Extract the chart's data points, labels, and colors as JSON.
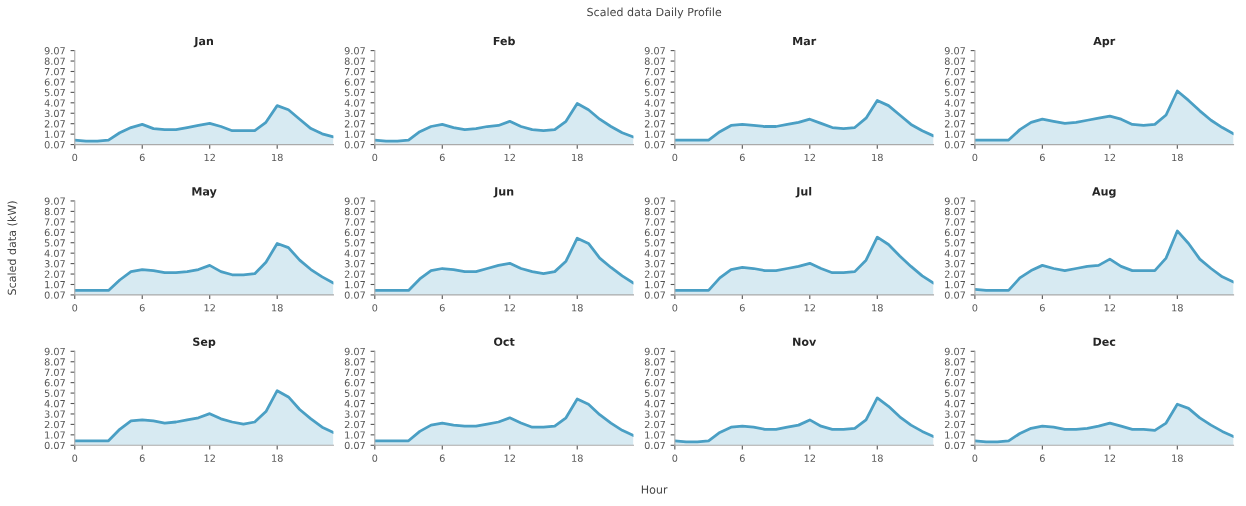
{
  "chart_data": [
    {
      "type": "other",
      "title": "Scaled data Daily Profile",
      "xlabel": "Hour",
      "ylabel": "Scaled data (kW)"
    },
    {
      "type": "area",
      "title": "Jan",
      "x": [
        0,
        1,
        2,
        3,
        4,
        5,
        6,
        7,
        8,
        9,
        10,
        11,
        12,
        13,
        14,
        15,
        16,
        17,
        18,
        19,
        20,
        21,
        22,
        23
      ],
      "xlim": [
        0,
        23
      ],
      "xticks": [
        0,
        6,
        12,
        18
      ],
      "ylim": [
        0.07,
        9.07
      ],
      "yticks": [
        0.07,
        1.07,
        2.07,
        3.07,
        4.07,
        5.07,
        6.07,
        7.07,
        8.07,
        9.07
      ],
      "series": [
        {
          "color": "#4a9fc4",
          "values": [
            0.5,
            0.4,
            0.4,
            0.5,
            1.2,
            1.7,
            2.0,
            1.6,
            1.5,
            1.5,
            1.7,
            1.9,
            2.1,
            1.8,
            1.4,
            1.4,
            1.4,
            2.2,
            3.8,
            3.4,
            2.5,
            1.6,
            1.1,
            0.8
          ]
        }
      ]
    },
    {
      "type": "area",
      "title": "Feb",
      "x": [
        0,
        1,
        2,
        3,
        4,
        5,
        6,
        7,
        8,
        9,
        10,
        11,
        12,
        13,
        14,
        15,
        16,
        17,
        18,
        19,
        20,
        21,
        22,
        23
      ],
      "xlim": [
        0,
        23
      ],
      "xticks": [
        0,
        6,
        12,
        18
      ],
      "ylim": [
        0.07,
        9.07
      ],
      "yticks": [
        0.07,
        1.07,
        2.07,
        3.07,
        4.07,
        5.07,
        6.07,
        7.07,
        8.07,
        9.07
      ],
      "series": [
        {
          "color": "#4a9fc4",
          "values": [
            0.5,
            0.4,
            0.4,
            0.5,
            1.3,
            1.8,
            2.0,
            1.7,
            1.5,
            1.6,
            1.8,
            1.9,
            2.3,
            1.8,
            1.5,
            1.4,
            1.5,
            2.3,
            4.0,
            3.4,
            2.5,
            1.8,
            1.2,
            0.8
          ]
        }
      ]
    },
    {
      "type": "area",
      "title": "Mar",
      "x": [
        0,
        1,
        2,
        3,
        4,
        5,
        6,
        7,
        8,
        9,
        10,
        11,
        12,
        13,
        14,
        15,
        16,
        17,
        18,
        19,
        20,
        21,
        22,
        23
      ],
      "xlim": [
        0,
        23
      ],
      "xticks": [
        0,
        6,
        12,
        18
      ],
      "ylim": [
        0.07,
        9.07
      ],
      "yticks": [
        0.07,
        1.07,
        2.07,
        3.07,
        4.07,
        5.07,
        6.07,
        7.07,
        8.07,
        9.07
      ],
      "series": [
        {
          "color": "#4a9fc4",
          "values": [
            0.5,
            0.5,
            0.5,
            0.5,
            1.3,
            1.9,
            2.0,
            1.9,
            1.8,
            1.8,
            2.0,
            2.2,
            2.5,
            2.1,
            1.7,
            1.6,
            1.7,
            2.6,
            4.3,
            3.8,
            2.9,
            2.0,
            1.4,
            0.9
          ]
        }
      ]
    },
    {
      "type": "area",
      "title": "Apr",
      "x": [
        0,
        1,
        2,
        3,
        4,
        5,
        6,
        7,
        8,
        9,
        10,
        11,
        12,
        13,
        14,
        15,
        16,
        17,
        18,
        19,
        20,
        21,
        22,
        23
      ],
      "xlim": [
        0,
        23
      ],
      "xticks": [
        0,
        6,
        12,
        18
      ],
      "ylim": [
        0.07,
        9.07
      ],
      "yticks": [
        0.07,
        1.07,
        2.07,
        3.07,
        4.07,
        5.07,
        6.07,
        7.07,
        8.07,
        9.07
      ],
      "series": [
        {
          "color": "#4a9fc4",
          "values": [
            0.5,
            0.5,
            0.5,
            0.5,
            1.5,
            2.2,
            2.5,
            2.3,
            2.1,
            2.2,
            2.4,
            2.6,
            2.8,
            2.5,
            2.0,
            1.9,
            2.0,
            2.9,
            5.2,
            4.3,
            3.3,
            2.4,
            1.7,
            1.1
          ]
        }
      ]
    },
    {
      "type": "area",
      "title": "May",
      "x": [
        0,
        1,
        2,
        3,
        4,
        5,
        6,
        7,
        8,
        9,
        10,
        11,
        12,
        13,
        14,
        15,
        16,
        17,
        18,
        19,
        20,
        21,
        22,
        23
      ],
      "xlim": [
        0,
        23
      ],
      "xticks": [
        0,
        6,
        12,
        18
      ],
      "ylim": [
        0.07,
        9.07
      ],
      "yticks": [
        0.07,
        1.07,
        2.07,
        3.07,
        4.07,
        5.07,
        6.07,
        7.07,
        8.07,
        9.07
      ],
      "series": [
        {
          "color": "#4a9fc4",
          "values": [
            0.5,
            0.5,
            0.5,
            0.5,
            1.5,
            2.3,
            2.5,
            2.4,
            2.2,
            2.2,
            2.3,
            2.5,
            2.9,
            2.3,
            2.0,
            2.0,
            2.1,
            3.2,
            5.0,
            4.6,
            3.4,
            2.5,
            1.8,
            1.2
          ]
        }
      ]
    },
    {
      "type": "area",
      "title": "Jun",
      "x": [
        0,
        1,
        2,
        3,
        4,
        5,
        6,
        7,
        8,
        9,
        10,
        11,
        12,
        13,
        14,
        15,
        16,
        17,
        18,
        19,
        20,
        21,
        22,
        23
      ],
      "xlim": [
        0,
        23
      ],
      "xticks": [
        0,
        6,
        12,
        18
      ],
      "ylim": [
        0.07,
        9.07
      ],
      "yticks": [
        0.07,
        1.07,
        2.07,
        3.07,
        4.07,
        5.07,
        6.07,
        7.07,
        8.07,
        9.07
      ],
      "series": [
        {
          "color": "#4a9fc4",
          "values": [
            0.5,
            0.5,
            0.5,
            0.5,
            1.6,
            2.4,
            2.6,
            2.5,
            2.3,
            2.3,
            2.6,
            2.9,
            3.1,
            2.6,
            2.3,
            2.1,
            2.3,
            3.3,
            5.5,
            5.0,
            3.6,
            2.7,
            1.9,
            1.2
          ]
        }
      ]
    },
    {
      "type": "area",
      "title": "Jul",
      "x": [
        0,
        1,
        2,
        3,
        4,
        5,
        6,
        7,
        8,
        9,
        10,
        11,
        12,
        13,
        14,
        15,
        16,
        17,
        18,
        19,
        20,
        21,
        22,
        23
      ],
      "xlim": [
        0,
        23
      ],
      "xticks": [
        0,
        6,
        12,
        18
      ],
      "ylim": [
        0.07,
        9.07
      ],
      "yticks": [
        0.07,
        1.07,
        2.07,
        3.07,
        4.07,
        5.07,
        6.07,
        7.07,
        8.07,
        9.07
      ],
      "series": [
        {
          "color": "#4a9fc4",
          "values": [
            0.5,
            0.5,
            0.5,
            0.5,
            1.7,
            2.5,
            2.7,
            2.6,
            2.4,
            2.4,
            2.6,
            2.8,
            3.1,
            2.6,
            2.2,
            2.2,
            2.3,
            3.4,
            5.6,
            4.9,
            3.8,
            2.8,
            1.9,
            1.2
          ]
        }
      ]
    },
    {
      "type": "area",
      "title": "Aug",
      "x": [
        0,
        1,
        2,
        3,
        4,
        5,
        6,
        7,
        8,
        9,
        10,
        11,
        12,
        13,
        14,
        15,
        16,
        17,
        18,
        19,
        20,
        21,
        22,
        23
      ],
      "xlim": [
        0,
        23
      ],
      "xticks": [
        0,
        6,
        12,
        18
      ],
      "ylim": [
        0.07,
        9.07
      ],
      "yticks": [
        0.07,
        1.07,
        2.07,
        3.07,
        4.07,
        5.07,
        6.07,
        7.07,
        8.07,
        9.07
      ],
      "series": [
        {
          "color": "#4a9fc4",
          "values": [
            0.6,
            0.5,
            0.5,
            0.5,
            1.7,
            2.4,
            2.9,
            2.6,
            2.4,
            2.6,
            2.8,
            2.9,
            3.5,
            2.8,
            2.4,
            2.4,
            2.4,
            3.6,
            6.2,
            5.0,
            3.5,
            2.6,
            1.8,
            1.3
          ]
        }
      ]
    },
    {
      "type": "area",
      "title": "Sep",
      "x": [
        0,
        1,
        2,
        3,
        4,
        5,
        6,
        7,
        8,
        9,
        10,
        11,
        12,
        13,
        14,
        15,
        16,
        17,
        18,
        19,
        20,
        21,
        22,
        23
      ],
      "xlim": [
        0,
        23
      ],
      "xticks": [
        0,
        6,
        12,
        18
      ],
      "ylim": [
        0.07,
        9.07
      ],
      "yticks": [
        0.07,
        1.07,
        2.07,
        3.07,
        4.07,
        5.07,
        6.07,
        7.07,
        8.07,
        9.07
      ],
      "series": [
        {
          "color": "#4a9fc4",
          "values": [
            0.5,
            0.5,
            0.5,
            0.5,
            1.6,
            2.4,
            2.5,
            2.4,
            2.2,
            2.3,
            2.5,
            2.7,
            3.1,
            2.6,
            2.3,
            2.1,
            2.3,
            3.3,
            5.3,
            4.7,
            3.5,
            2.6,
            1.8,
            1.3
          ]
        }
      ]
    },
    {
      "type": "area",
      "title": "Oct",
      "x": [
        0,
        1,
        2,
        3,
        4,
        5,
        6,
        7,
        8,
        9,
        10,
        11,
        12,
        13,
        14,
        15,
        16,
        17,
        18,
        19,
        20,
        21,
        22,
        23
      ],
      "xlim": [
        0,
        23
      ],
      "xticks": [
        0,
        6,
        12,
        18
      ],
      "ylim": [
        0.07,
        9.07
      ],
      "yticks": [
        0.07,
        1.07,
        2.07,
        3.07,
        4.07,
        5.07,
        6.07,
        7.07,
        8.07,
        9.07
      ],
      "series": [
        {
          "color": "#4a9fc4",
          "values": [
            0.5,
            0.5,
            0.5,
            0.5,
            1.4,
            2.0,
            2.2,
            2.0,
            1.9,
            1.9,
            2.1,
            2.3,
            2.7,
            2.2,
            1.8,
            1.8,
            1.9,
            2.7,
            4.5,
            4.0,
            3.0,
            2.2,
            1.5,
            1.0
          ]
        }
      ]
    },
    {
      "type": "area",
      "title": "Nov",
      "x": [
        0,
        1,
        2,
        3,
        4,
        5,
        6,
        7,
        8,
        9,
        10,
        11,
        12,
        13,
        14,
        15,
        16,
        17,
        18,
        19,
        20,
        21,
        22,
        23
      ],
      "xlim": [
        0,
        23
      ],
      "xticks": [
        0,
        6,
        12,
        18
      ],
      "ylim": [
        0.07,
        9.07
      ],
      "yticks": [
        0.07,
        1.07,
        2.07,
        3.07,
        4.07,
        5.07,
        6.07,
        7.07,
        8.07,
        9.07
      ],
      "series": [
        {
          "color": "#4a9fc4",
          "values": [
            0.5,
            0.4,
            0.4,
            0.5,
            1.3,
            1.8,
            1.9,
            1.8,
            1.6,
            1.6,
            1.8,
            2.0,
            2.5,
            1.9,
            1.6,
            1.6,
            1.7,
            2.5,
            4.6,
            3.8,
            2.8,
            2.0,
            1.4,
            0.9
          ]
        }
      ]
    },
    {
      "type": "area",
      "title": "Dec",
      "x": [
        0,
        1,
        2,
        3,
        4,
        5,
        6,
        7,
        8,
        9,
        10,
        11,
        12,
        13,
        14,
        15,
        16,
        17,
        18,
        19,
        20,
        21,
        22,
        23
      ],
      "xlim": [
        0,
        23
      ],
      "xticks": [
        0,
        6,
        12,
        18
      ],
      "ylim": [
        0.07,
        9.07
      ],
      "yticks": [
        0.07,
        1.07,
        2.07,
        3.07,
        4.07,
        5.07,
        6.07,
        7.07,
        8.07,
        9.07
      ],
      "series": [
        {
          "color": "#4a9fc4",
          "values": [
            0.5,
            0.4,
            0.4,
            0.5,
            1.2,
            1.7,
            1.9,
            1.8,
            1.6,
            1.6,
            1.7,
            1.9,
            2.2,
            1.9,
            1.6,
            1.6,
            1.5,
            2.2,
            4.0,
            3.6,
            2.7,
            2.0,
            1.4,
            0.9
          ]
        }
      ]
    }
  ]
}
